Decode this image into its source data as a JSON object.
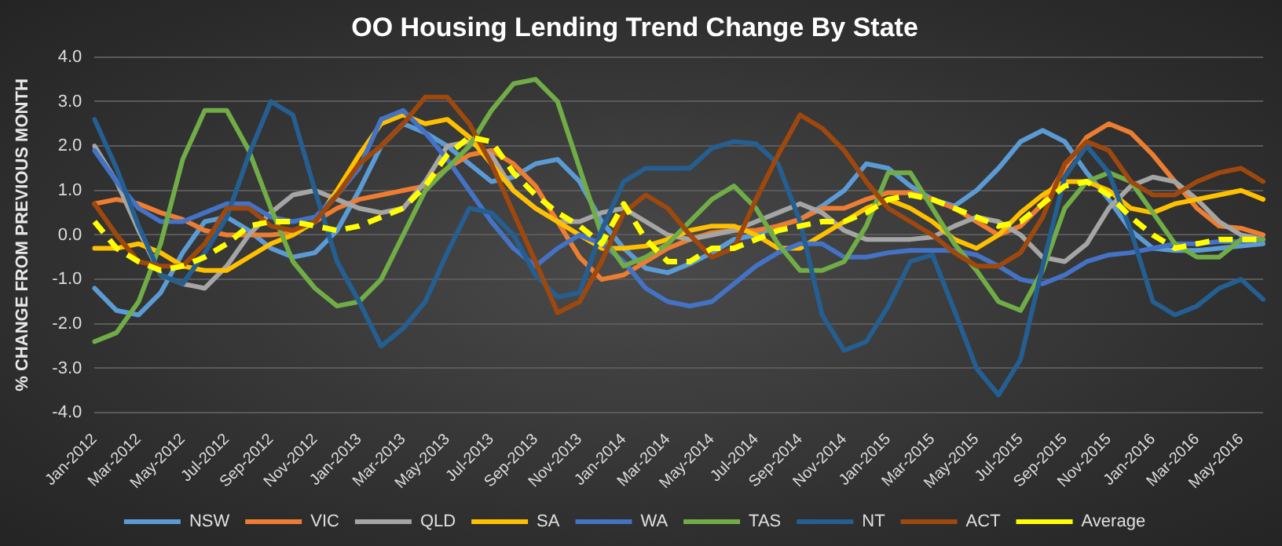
{
  "chart_data": {
    "type": "line",
    "title": "OO Housing Lending Trend Change By State",
    "ylabel": "% CHANGE FROM PREVIOUS MONTH",
    "categories": [
      "Jan-2012",
      null,
      "Mar-2012",
      null,
      "May-2012",
      null,
      "Jul-2012",
      null,
      "Sep-2012",
      null,
      "Nov-2012",
      null,
      "Jan-2013",
      null,
      "Mar-2013",
      null,
      "May-2013",
      null,
      "Jul-2013",
      null,
      "Sep-2013",
      null,
      "Nov-2013",
      null,
      "Jan-2014",
      null,
      "Mar-2014",
      null,
      "May-2014",
      null,
      "Jul-2014",
      null,
      "Sep-2014",
      null,
      "Nov-2014",
      null,
      "Jan-2015",
      null,
      "Mar-2015",
      null,
      "May-2015",
      null,
      "Jul-2015",
      null,
      "Sep-2015",
      null,
      "Nov-2015",
      null,
      "Jan-2016",
      null,
      "Mar-2016",
      null,
      "May-2016",
      null
    ],
    "ylim": [
      -4,
      4
    ],
    "yticks": [
      {
        "value": -4,
        "label": "-4.0"
      },
      {
        "value": -3,
        "label": "-3.0"
      },
      {
        "value": -2,
        "label": "-2.0"
      },
      {
        "value": -1,
        "label": "-1.0"
      },
      {
        "value": 0,
        "label": "0.0"
      },
      {
        "value": 1,
        "label": "1.0"
      },
      {
        "value": 2,
        "label": "2.0"
      },
      {
        "value": 3,
        "label": "3.0"
      },
      {
        "value": 4,
        "label": "4.0"
      }
    ],
    "grid": "y",
    "legend": "bottom",
    "marker": "none",
    "series": [
      {
        "name": "NSW",
        "color": "#5b9bd5",
        "values": [
          -1.2,
          -1.7,
          -1.8,
          -1.3,
          -0.4,
          0.3,
          0.4,
          0.1,
          -0.3,
          -0.5,
          -0.4,
          0.1,
          1.0,
          2.0,
          2.5,
          2.3,
          2.0,
          1.6,
          1.2,
          1.3,
          1.6,
          1.7,
          1.2,
          0.3,
          -0.3,
          -0.75,
          -0.85,
          -0.65,
          -0.4,
          -0.1,
          0.0,
          0.2,
          0.35,
          0.65,
          1.0,
          1.6,
          1.5,
          1.1,
          0.8,
          0.65,
          1.0,
          1.5,
          2.1,
          2.35,
          2.1,
          1.4,
          0.8,
          0.1,
          -0.3,
          -0.35,
          -0.35,
          -0.3,
          -0.25,
          -0.2
        ]
      },
      {
        "name": "VIC",
        "color": "#ed7d31",
        "values": [
          0.7,
          0.8,
          0.7,
          0.5,
          0.35,
          0.1,
          0.0,
          0.0,
          0.0,
          0.05,
          0.3,
          0.6,
          0.8,
          0.9,
          1.0,
          1.1,
          1.5,
          1.8,
          1.9,
          1.6,
          1.1,
          0.3,
          -0.5,
          -1.0,
          -0.9,
          -0.6,
          -0.3,
          -0.1,
          0.05,
          0.1,
          0.1,
          0.2,
          0.35,
          0.6,
          0.6,
          0.8,
          0.95,
          0.95,
          0.8,
          0.6,
          0.3,
          0.0,
          0.2,
          0.7,
          1.5,
          2.2,
          2.5,
          2.3,
          1.8,
          1.2,
          0.6,
          0.2,
          0.15,
          0.0
        ]
      },
      {
        "name": "QLD",
        "color": "#a5a5a5",
        "values": [
          2.0,
          1.2,
          0.1,
          -0.9,
          -1.1,
          -1.2,
          -0.7,
          0.0,
          0.5,
          0.9,
          1.0,
          0.8,
          0.6,
          0.5,
          0.6,
          1.2,
          2.0,
          2.1,
          1.8,
          1.0,
          0.6,
          0.3,
          0.3,
          0.5,
          0.6,
          0.3,
          0.0,
          -0.1,
          0.0,
          0.1,
          0.3,
          0.5,
          0.7,
          0.5,
          0.1,
          -0.1,
          -0.1,
          -0.1,
          -0.05,
          0.2,
          0.4,
          0.3,
          0.0,
          -0.5,
          -0.6,
          -0.2,
          0.6,
          1.1,
          1.3,
          1.2,
          0.8,
          0.3,
          0.0,
          -0.1
        ]
      },
      {
        "name": "SA",
        "color": "#ffc000",
        "values": [
          -0.3,
          -0.3,
          -0.2,
          -0.4,
          -0.7,
          -0.8,
          -0.8,
          -0.5,
          -0.2,
          0.0,
          0.3,
          1.0,
          1.8,
          2.5,
          2.7,
          2.5,
          2.6,
          2.2,
          1.6,
          1.0,
          0.6,
          0.3,
          0.0,
          -0.3,
          -0.3,
          -0.25,
          -0.1,
          0.1,
          0.2,
          0.2,
          0.0,
          -0.3,
          -0.3,
          0.0,
          0.3,
          0.6,
          0.8,
          0.6,
          0.3,
          -0.1,
          -0.3,
          0.0,
          0.5,
          0.9,
          1.2,
          1.2,
          1.0,
          0.6,
          0.5,
          0.7,
          0.8,
          0.9,
          1.0,
          0.8
        ]
      },
      {
        "name": "WA",
        "color": "#4472c4",
        "values": [
          1.9,
          1.2,
          0.6,
          0.3,
          0.3,
          0.5,
          0.7,
          0.7,
          0.4,
          0.3,
          0.4,
          0.9,
          1.5,
          2.6,
          2.8,
          2.3,
          1.7,
          1.0,
          0.3,
          -0.3,
          -0.7,
          -0.3,
          0.0,
          -0.2,
          -0.6,
          -1.2,
          -1.5,
          -1.6,
          -1.5,
          -1.1,
          -0.7,
          -0.4,
          -0.2,
          -0.2,
          -0.5,
          -0.5,
          -0.4,
          -0.35,
          -0.35,
          -0.35,
          -0.45,
          -0.7,
          -1.0,
          -1.1,
          -0.9,
          -0.6,
          -0.45,
          -0.4,
          -0.3,
          -0.2,
          -0.2,
          -0.15,
          -0.15,
          -0.1
        ]
      },
      {
        "name": "TAS",
        "color": "#70ad47",
        "values": [
          -2.4,
          -2.2,
          -1.5,
          -0.2,
          1.7,
          2.8,
          2.8,
          1.9,
          0.6,
          -0.6,
          -1.2,
          -1.6,
          -1.5,
          -1.0,
          0.0,
          1.0,
          1.5,
          2.0,
          2.8,
          3.4,
          3.5,
          3.0,
          1.5,
          0.0,
          -0.7,
          -0.5,
          -0.2,
          0.3,
          0.8,
          1.1,
          0.6,
          -0.2,
          -0.8,
          -0.8,
          -0.6,
          0.2,
          1.4,
          1.4,
          0.6,
          -0.2,
          -0.8,
          -1.5,
          -1.7,
          -0.8,
          0.6,
          1.2,
          1.4,
          1.2,
          0.5,
          -0.2,
          -0.5,
          -0.5,
          -0.1,
          -0.1
        ]
      },
      {
        "name": "NT",
        "color": "#255e91",
        "values": [
          2.6,
          1.5,
          0.2,
          -0.9,
          -1.1,
          -0.4,
          0.4,
          1.8,
          3.0,
          2.7,
          1.0,
          -0.6,
          -1.5,
          -2.5,
          -2.1,
          -1.5,
          -0.4,
          0.6,
          0.5,
          0.0,
          -0.9,
          -1.4,
          -1.3,
          0.1,
          1.2,
          1.5,
          1.5,
          1.5,
          1.95,
          2.1,
          2.05,
          1.6,
          0.3,
          -1.8,
          -2.6,
          -2.4,
          -1.6,
          -0.6,
          -0.45,
          -1.7,
          -3.0,
          -3.6,
          -2.8,
          -0.7,
          1.3,
          2.0,
          1.4,
          0.1,
          -1.5,
          -1.8,
          -1.6,
          -1.2,
          -1.0,
          -1.45
        ]
      },
      {
        "name": "ACT",
        "color": "#9e480e",
        "values": [
          0.7,
          0.0,
          -0.6,
          -0.7,
          -0.7,
          -0.2,
          0.6,
          0.6,
          0.2,
          0.1,
          0.3,
          0.9,
          1.6,
          2.0,
          2.5,
          3.1,
          3.1,
          2.5,
          1.6,
          0.5,
          -0.6,
          -1.75,
          -1.5,
          -0.6,
          0.5,
          0.9,
          0.6,
          0.0,
          -0.5,
          -0.3,
          0.8,
          1.8,
          2.7,
          2.4,
          1.9,
          1.2,
          0.6,
          0.3,
          0.0,
          -0.4,
          -0.7,
          -0.7,
          -0.4,
          0.4,
          1.6,
          2.1,
          1.9,
          1.2,
          0.9,
          0.9,
          1.2,
          1.4,
          1.5,
          1.2
        ]
      },
      {
        "name": "Average",
        "color": "#ffff00",
        "line_style": "dashed",
        "values": [
          0.3,
          -0.3,
          -0.6,
          -0.8,
          -0.7,
          -0.5,
          -0.2,
          0.2,
          0.3,
          0.3,
          0.2,
          0.1,
          0.2,
          0.4,
          0.6,
          1.1,
          1.8,
          2.2,
          2.1,
          1.4,
          0.9,
          0.5,
          0.2,
          -0.2,
          0.7,
          -0.1,
          -0.6,
          -0.6,
          -0.3,
          -0.3,
          -0.1,
          0.1,
          0.2,
          0.3,
          0.3,
          0.5,
          0.8,
          0.9,
          0.8,
          0.6,
          0.4,
          0.2,
          0.3,
          0.7,
          1.1,
          1.2,
          0.9,
          0.4,
          0.0,
          -0.3,
          -0.2,
          -0.1,
          -0.1,
          -0.1
        ]
      }
    ]
  }
}
